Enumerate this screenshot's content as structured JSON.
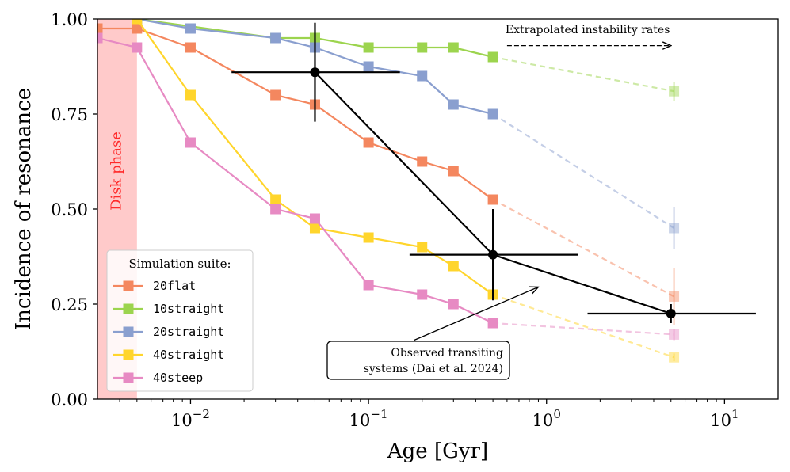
{
  "chart_data": {
    "type": "line",
    "xscale": "log",
    "xlabel": "Age [Gyr]",
    "ylabel": "Incidence of resonance",
    "xlim": [
      0.003,
      20
    ],
    "ylim": [
      0,
      1
    ],
    "xtick_labels": [
      {
        "value": 0.01,
        "base": "10",
        "exp": "−2"
      },
      {
        "value": 0.1,
        "base": "10",
        "exp": "−1"
      },
      {
        "value": 1,
        "base": "10",
        "exp": "0"
      },
      {
        "value": 10,
        "base": "10",
        "exp": "1"
      }
    ],
    "yticks": [
      {
        "value": 0.0,
        "label": "0.00"
      },
      {
        "value": 0.25,
        "label": "0.25"
      },
      {
        "value": 0.5,
        "label": "0.50"
      },
      {
        "value": 0.75,
        "label": "0.75"
      },
      {
        "value": 1.0,
        "label": "1.00"
      }
    ],
    "disk_phase": {
      "x_min": 0.003,
      "x_max": 0.005,
      "label": "Disk phase",
      "color": "#ff8080"
    },
    "legend": {
      "title": "Simulation suite:",
      "placement": "lower-left"
    },
    "series": [
      {
        "name": "20flat",
        "color": "#f4875f",
        "x": [
          0.003,
          0.005,
          0.01,
          0.03,
          0.05,
          0.1,
          0.2,
          0.3,
          0.5
        ],
        "y": [
          0.975,
          0.975,
          0.925,
          0.8,
          0.775,
          0.675,
          0.625,
          0.6,
          0.525
        ],
        "extrap": {
          "x": 5.2,
          "y": 0.27,
          "err": 0.075
        }
      },
      {
        "name": "10straight",
        "color": "#9cd44e",
        "x": [
          0.005,
          0.03,
          0.05,
          0.1,
          0.2,
          0.3,
          0.5
        ],
        "y": [
          1.0,
          0.95,
          0.95,
          0.925,
          0.925,
          0.925,
          0.9
        ],
        "extrap": {
          "x": 5.2,
          "y": 0.81,
          "err": 0.025
        }
      },
      {
        "name": "20straight",
        "color": "#8a9fcf",
        "x": [
          0.005,
          0.01,
          0.03,
          0.05,
          0.1,
          0.2,
          0.3,
          0.5
        ],
        "y": [
          1.0,
          0.975,
          0.95,
          0.925,
          0.875,
          0.85,
          0.775,
          0.75
        ],
        "extrap": {
          "x": 5.2,
          "y": 0.45,
          "err": 0.055
        }
      },
      {
        "name": "40straight",
        "color": "#ffd52c",
        "x": [
          0.005,
          0.01,
          0.03,
          0.05,
          0.1,
          0.2,
          0.3,
          0.5
        ],
        "y": [
          1.0,
          0.8,
          0.525,
          0.45,
          0.425,
          0.4,
          0.35,
          0.275
        ],
        "extrap": {
          "x": 5.2,
          "y": 0.11,
          "err": 0.01
        }
      },
      {
        "name": "40steep",
        "color": "#e78ac3",
        "x": [
          0.003,
          0.005,
          0.01,
          0.03,
          0.05,
          0.1,
          0.2,
          0.3,
          0.5
        ],
        "y": [
          0.95,
          0.925,
          0.675,
          0.5,
          0.475,
          0.3,
          0.275,
          0.25,
          0.2
        ],
        "extrap": {
          "x": 5.2,
          "y": 0.17,
          "err": 0.015
        }
      }
    ],
    "observed": {
      "label": "Observed transiting systems (Dai et al. 2024)",
      "label_lines": [
        "Observed transiting",
        "systems (Dai et al. 2024)"
      ],
      "points": [
        {
          "x": 0.05,
          "y": 0.86,
          "xlo": 0.017,
          "xhi": 0.15,
          "ylo": 0.73,
          "yhi": 0.99
        },
        {
          "x": 0.5,
          "y": 0.38,
          "xlo": 0.17,
          "xhi": 1.5,
          "ylo": 0.26,
          "yhi": 0.5
        },
        {
          "x": 5.0,
          "y": 0.225,
          "xlo": 1.7,
          "xhi": 15.0,
          "ylo": 0.2,
          "yhi": 0.25
        }
      ]
    },
    "annotations": [
      {
        "text": "Extrapolated instability rates",
        "arrow_from_x": 0.6,
        "arrow_to_x": 5.0,
        "y": 0.93
      },
      {
        "text_ref": "observed",
        "arrow_to_x": 0.9,
        "arrow_to_y": 0.295,
        "arrow_from_x": 0.18,
        "arrow_from_y": 0.155
      }
    ]
  }
}
